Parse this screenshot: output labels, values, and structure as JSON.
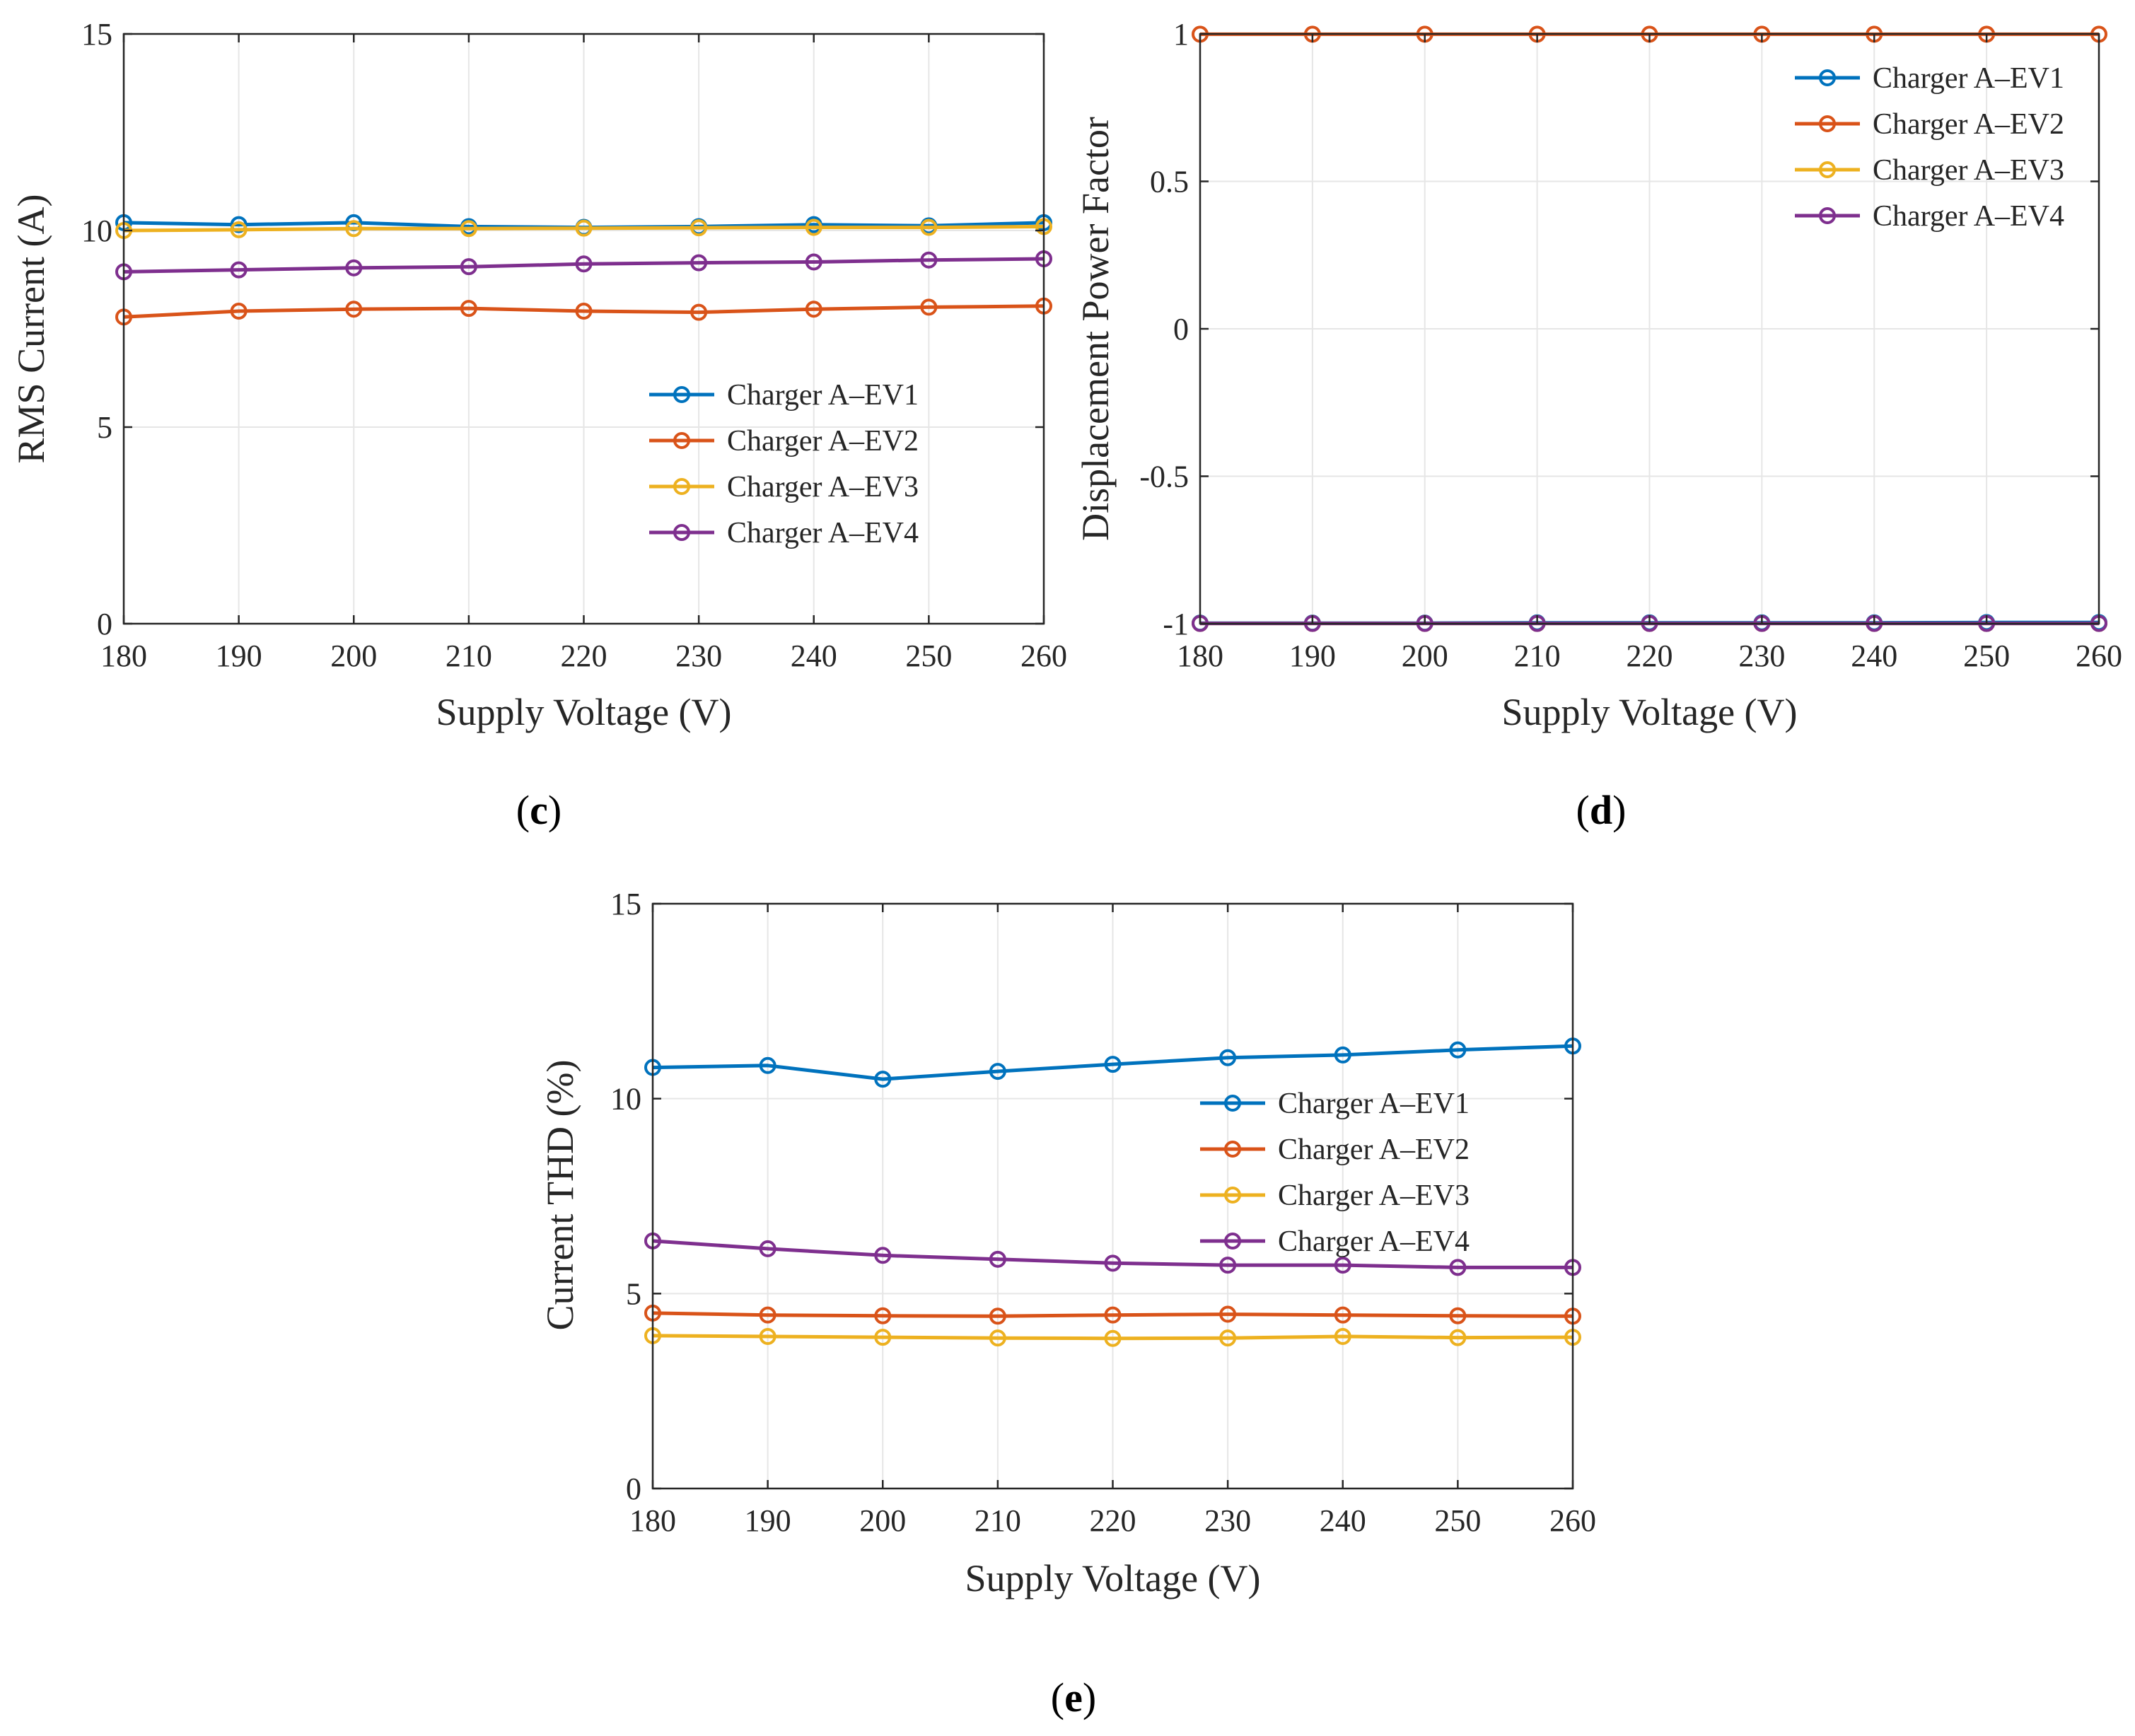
{
  "chart_data": [
    {
      "id": "c",
      "caption": "c",
      "type": "line",
      "title": "",
      "xlabel": "Supply Voltage (V)",
      "ylabel": "RMS Current (A)",
      "xlim": [
        180,
        260
      ],
      "ylim": [
        0,
        15
      ],
      "xticks": [
        180,
        190,
        200,
        210,
        220,
        230,
        240,
        250,
        260
      ],
      "yticks": [
        0,
        5,
        10,
        15
      ],
      "grid": true,
      "legend": "lower-right",
      "x": [
        180,
        190,
        200,
        210,
        220,
        230,
        240,
        250,
        260
      ],
      "series": [
        {
          "name": "Charger A–EV1",
          "color": "#0072BD",
          "values": [
            10.2,
            10.15,
            10.2,
            10.1,
            10.08,
            10.1,
            10.15,
            10.12,
            10.2
          ]
        },
        {
          "name": "Charger A–EV2",
          "color": "#D95319",
          "values": [
            7.8,
            7.95,
            8.0,
            8.02,
            7.95,
            7.92,
            8.0,
            8.05,
            8.08
          ]
        },
        {
          "name": "Charger A–EV3",
          "color": "#EDB120",
          "values": [
            10.0,
            10.02,
            10.05,
            10.05,
            10.06,
            10.07,
            10.08,
            10.08,
            10.1
          ]
        },
        {
          "name": "Charger A–EV4",
          "color": "#7E2F8E",
          "values": [
            8.95,
            9.0,
            9.05,
            9.08,
            9.15,
            9.18,
            9.2,
            9.25,
            9.28
          ]
        }
      ]
    },
    {
      "id": "d",
      "caption": "d",
      "type": "line",
      "title": "",
      "xlabel": "Supply Voltage (V)",
      "ylabel": "Displacement Power Factor",
      "xlim": [
        180,
        260
      ],
      "ylim": [
        -1,
        1
      ],
      "xticks": [
        180,
        190,
        200,
        210,
        220,
        230,
        240,
        250,
        260
      ],
      "yticks": [
        -1,
        -0.5,
        0,
        0.5,
        1
      ],
      "ytick_labels": [
        "-1",
        "-0.5",
        "0",
        "0.5",
        "1"
      ],
      "grid": true,
      "legend": "top-right",
      "x": [
        180,
        190,
        200,
        210,
        220,
        230,
        240,
        250,
        260
      ],
      "series": [
        {
          "name": "Charger A–EV1",
          "color": "#0072BD",
          "values": [
            -0.998,
            -0.998,
            -0.998,
            -0.997,
            -0.997,
            -0.997,
            -0.997,
            -0.996,
            -0.996
          ]
        },
        {
          "name": "Charger A–EV2",
          "color": "#D95319",
          "values": [
            0.999,
            0.999,
            0.999,
            0.999,
            0.999,
            0.999,
            0.999,
            0.999,
            0.999
          ]
        },
        {
          "name": "Charger A–EV3",
          "color": "#EDB120",
          "values": [
            -0.999,
            -0.999,
            -0.999,
            -0.999,
            -0.999,
            -0.999,
            -0.999,
            -0.999,
            -0.999
          ]
        },
        {
          "name": "Charger A–EV4",
          "color": "#7E2F8E",
          "values": [
            -0.999,
            -0.999,
            -0.999,
            -0.999,
            -0.999,
            -0.999,
            -0.999,
            -0.999,
            -0.999
          ]
        }
      ]
    },
    {
      "id": "e",
      "caption": "e",
      "type": "line",
      "title": "",
      "xlabel": "Supply Voltage (V)",
      "ylabel": "Current THD (%)",
      "xlim": [
        180,
        260
      ],
      "ylim": [
        0,
        15
      ],
      "xticks": [
        180,
        190,
        200,
        210,
        220,
        230,
        240,
        250,
        260
      ],
      "yticks": [
        0,
        5,
        10,
        15
      ],
      "grid": true,
      "legend": "right",
      "x": [
        180,
        190,
        200,
        210,
        220,
        230,
        240,
        250,
        260
      ],
      "series": [
        {
          "name": "Charger A–EV1",
          "color": "#0072BD",
          "values": [
            10.8,
            10.85,
            10.5,
            10.7,
            10.88,
            11.05,
            11.12,
            11.25,
            11.35
          ]
        },
        {
          "name": "Charger A–EV2",
          "color": "#D95319",
          "values": [
            4.5,
            4.45,
            4.43,
            4.42,
            4.45,
            4.47,
            4.45,
            4.43,
            4.42
          ]
        },
        {
          "name": "Charger A–EV3",
          "color": "#EDB120",
          "values": [
            3.92,
            3.9,
            3.88,
            3.86,
            3.85,
            3.86,
            3.9,
            3.87,
            3.88
          ]
        },
        {
          "name": "Charger A–EV4",
          "color": "#7E2F8E",
          "values": [
            6.35,
            6.15,
            5.98,
            5.88,
            5.78,
            5.73,
            5.73,
            5.67,
            5.67
          ]
        }
      ]
    }
  ]
}
